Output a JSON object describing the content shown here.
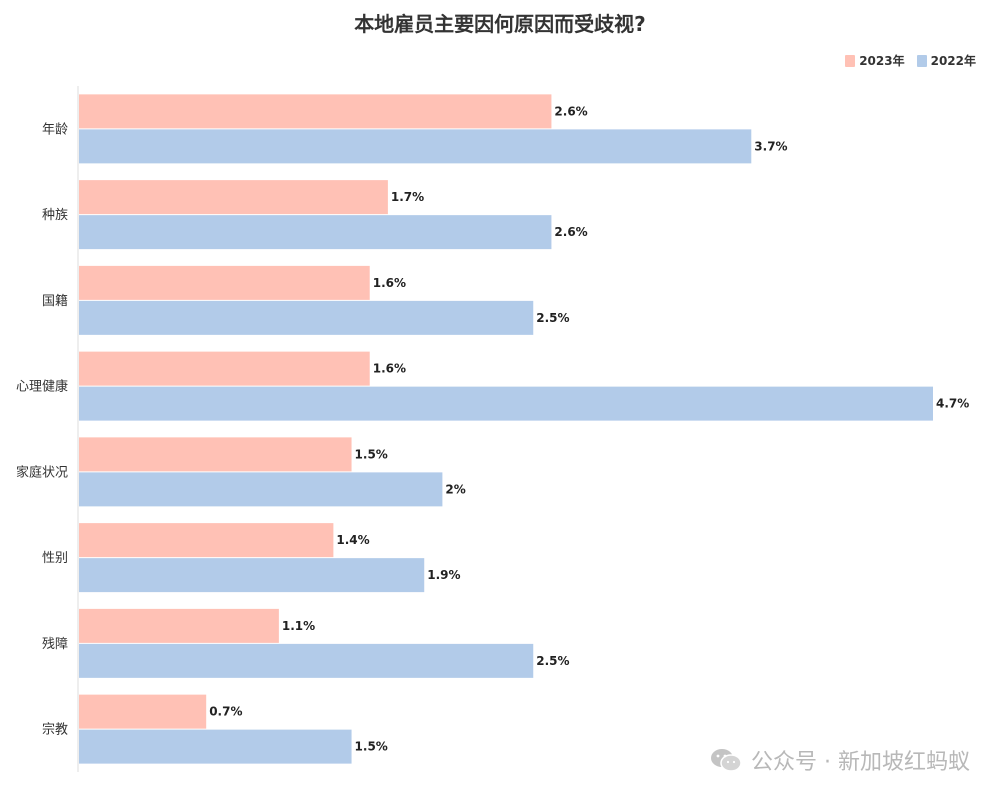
{
  "chart_data": {
    "type": "bar",
    "orientation": "horizontal",
    "title": "本地雇员主要因何原因而受歧视?",
    "categories": [
      "年龄",
      "种族",
      "国籍",
      "心理健康",
      "家庭状况",
      "性别",
      "残障",
      "宗教"
    ],
    "series": [
      {
        "name": "2023年",
        "color": "#ffc1b5",
        "values": [
          2.6,
          1.7,
          1.6,
          1.6,
          1.5,
          1.4,
          1.1,
          0.7
        ],
        "labels": [
          "2.6%",
          "1.7%",
          "1.6%",
          "1.6%",
          "1.5%",
          "1.4%",
          "1.1%",
          "0.7%"
        ]
      },
      {
        "name": "2022年",
        "color": "#b2cbe9",
        "values": [
          3.7,
          2.6,
          2.5,
          4.7,
          2.0,
          1.9,
          2.5,
          1.5
        ],
        "labels": [
          "3.7%",
          "2.6%",
          "2.5%",
          "4.7%",
          "2%",
          "1.9%",
          "2.5%",
          "1.5%"
        ]
      }
    ],
    "xlim": [
      0,
      4.7
    ],
    "legend_position": "top-right",
    "grid": false
  },
  "watermark": {
    "text": "公众号 · 新加坡红蚂蚁",
    "icon": "wechat-icon"
  }
}
